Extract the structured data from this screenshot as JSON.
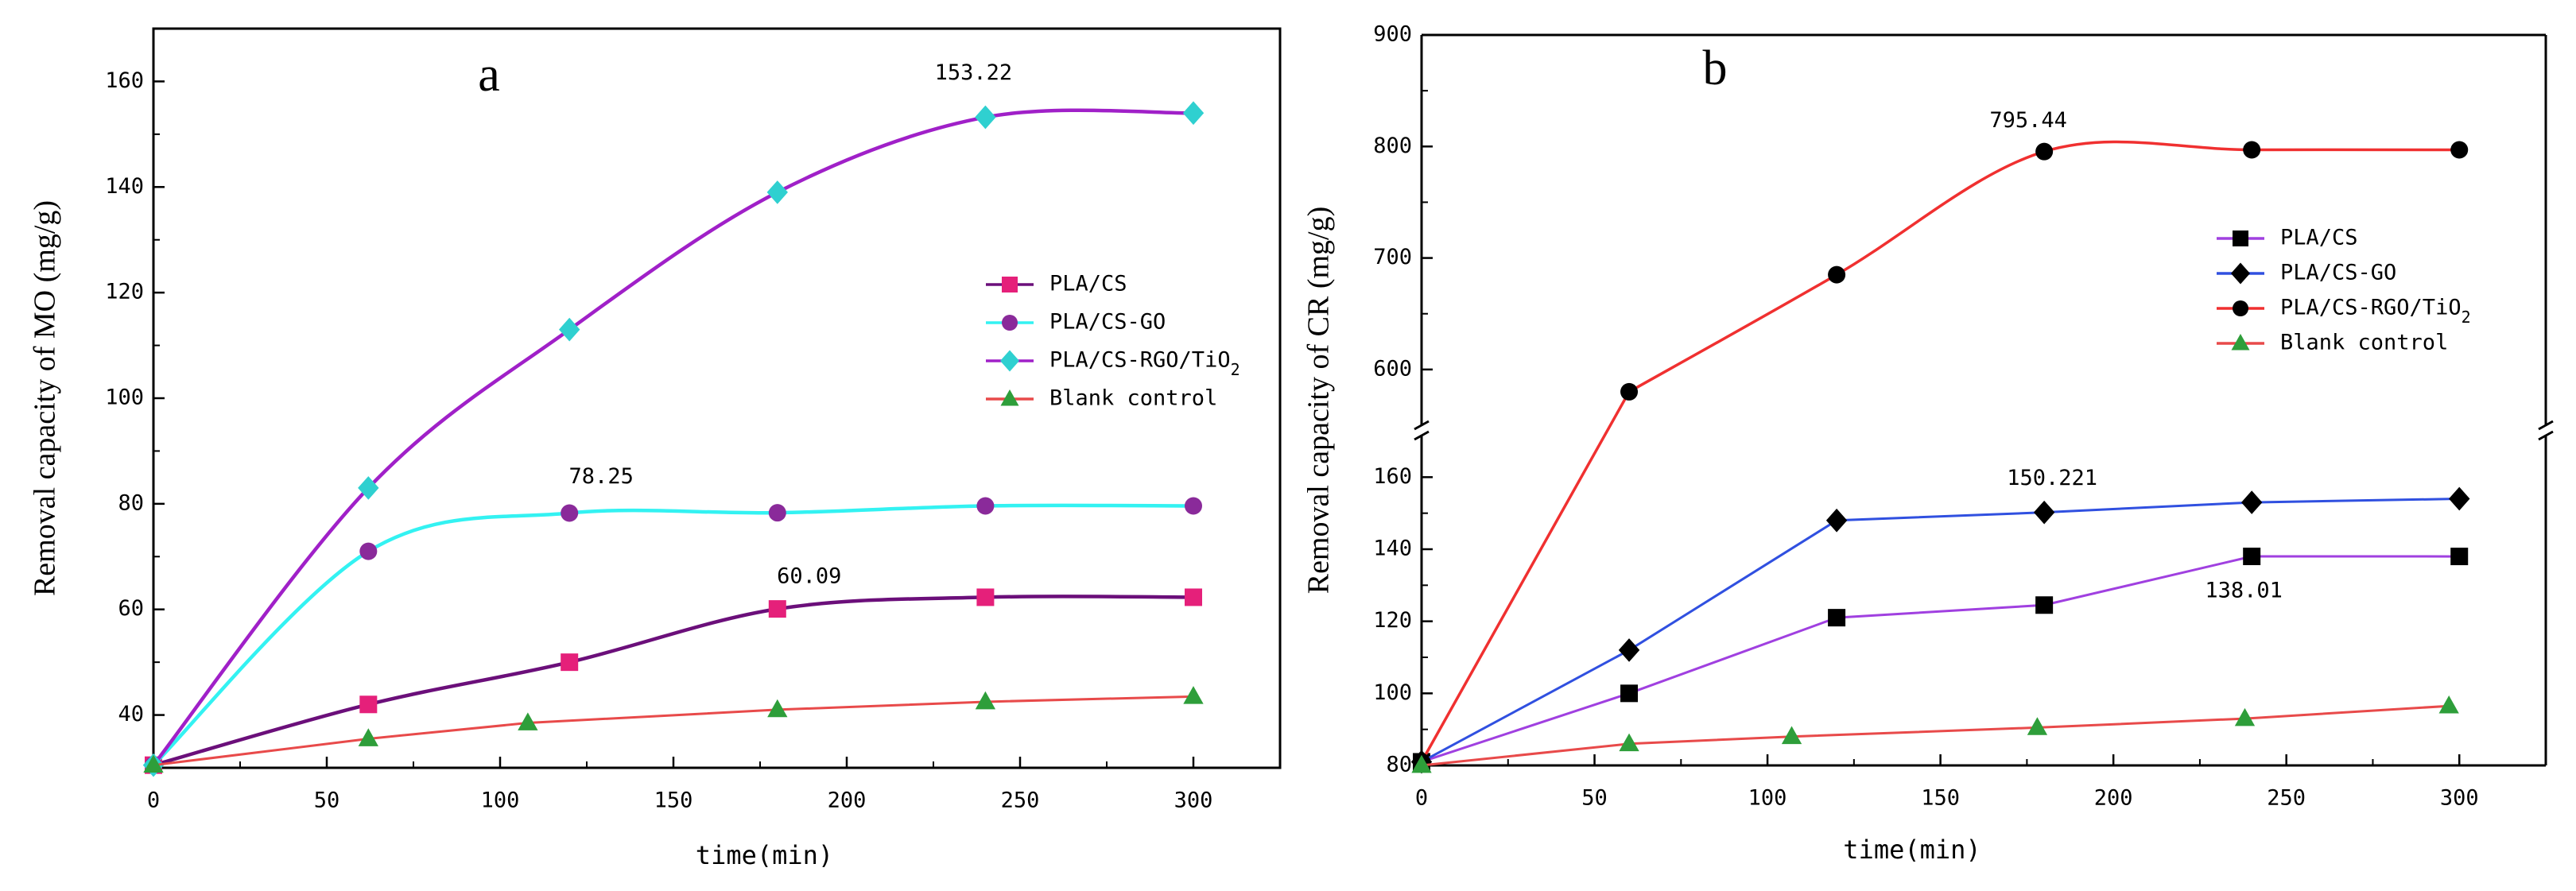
{
  "chart_data": [
    {
      "panel": "a",
      "type": "line",
      "ylabel": "Removal capacity of MO (mg/g)",
      "xlabel": "time(min)",
      "xlim": [
        0,
        325
      ],
      "ylim": [
        30,
        170
      ],
      "xticks": [
        0,
        50,
        100,
        150,
        200,
        250,
        300
      ],
      "xtick_labels": [
        "0",
        "50",
        "100",
        "150",
        "200",
        "250",
        "300"
      ],
      "yticks": [
        40,
        60,
        80,
        100,
        120,
        140,
        160
      ],
      "ytick_labels": [
        "40",
        "60",
        "80",
        "100",
        "120",
        "140",
        "160"
      ],
      "series": [
        {
          "name": "PLA/CS",
          "color": "#6b0f7a",
          "marker": "square",
          "marker_color": "#e5207a",
          "x": [
            0,
            62,
            120,
            180,
            240,
            300
          ],
          "y": [
            30.5,
            42,
            50,
            60.09,
            62.3,
            62.3
          ]
        },
        {
          "name": "PLA/CS-GO",
          "color": "#33f2f2",
          "marker": "circle",
          "marker_color": "#8a2a9a",
          "x": [
            0,
            62,
            120,
            180,
            240,
            300
          ],
          "y": [
            30.5,
            71,
            78.25,
            78.3,
            79.6,
            79.6
          ]
        },
        {
          "name": "PLA/CS-RGO/TiO",
          "name_subscript": "2",
          "color": "#a020c8",
          "marker": "diamond",
          "marker_color": "#2fd0d0",
          "x": [
            0,
            62,
            120,
            180,
            240,
            300
          ],
          "y": [
            30.5,
            83,
            113,
            139,
            153.22,
            154
          ]
        },
        {
          "name": "Blank control",
          "color": "#e84a4a",
          "marker": "triangle",
          "marker_color": "#2e9e3a",
          "x": [
            0,
            62,
            108,
            180,
            240,
            300
          ],
          "y": [
            30.5,
            35.5,
            38.5,
            41,
            42.5,
            43.5
          ]
        }
      ],
      "annotations": [
        "153.22",
        "78.25",
        "60.09"
      ]
    },
    {
      "panel": "b",
      "type": "line",
      "ylabel": "Removal capacity of CR (mg/g)",
      "xlabel": "time(min)",
      "xlim": [
        0,
        325
      ],
      "axis_break": true,
      "ylim_lower": [
        80,
        170
      ],
      "ylim_upper": [
        555,
        900
      ],
      "xticks": [
        0,
        50,
        100,
        150,
        200,
        250,
        300
      ],
      "xtick_labels": [
        "0",
        "50",
        "100",
        "150",
        "200",
        "250",
        "300"
      ],
      "yticks_lower": [
        80,
        100,
        120,
        140,
        160
      ],
      "ytick_labels_lower": [
        "80",
        "100",
        "120",
        "140",
        "160"
      ],
      "yticks_upper": [
        600,
        700,
        800,
        900
      ],
      "ytick_labels_upper": [
        "600",
        "700",
        "800",
        "900"
      ],
      "series": [
        {
          "name": "PLA/CS",
          "color": "#a040e0",
          "marker": "square",
          "marker_color": "#000000",
          "x": [
            0,
            60,
            120,
            180,
            240,
            300
          ],
          "y": [
            81,
            100,
            121,
            124.5,
            138.01,
            138
          ]
        },
        {
          "name": "PLA/CS-GO",
          "color": "#3050e0",
          "marker": "diamond",
          "marker_color": "#000000",
          "x": [
            0,
            60,
            120,
            180,
            240,
            300
          ],
          "y": [
            81,
            112,
            148,
            150.221,
            153,
            154
          ]
        },
        {
          "name": "PLA/CS-RGO/TiO",
          "name_subscript": "2",
          "color": "#f03030",
          "marker": "circle",
          "marker_color": "#000000",
          "x": [
            0,
            60,
            120,
            180,
            240,
            300
          ],
          "y": [
            81,
            580,
            685,
            795.44,
            797,
            797
          ]
        },
        {
          "name": "Blank control",
          "color": "#e84a4a",
          "marker": "triangle",
          "marker_color": "#2e9e3a",
          "x": [
            0,
            60,
            107,
            178,
            238,
            297
          ],
          "y": [
            80,
            86,
            88,
            90.5,
            93,
            96.5
          ]
        }
      ],
      "annotations": [
        "795.44",
        "150.221",
        "138.01"
      ]
    }
  ],
  "panel_labels": {
    "a": "a",
    "b": "b"
  }
}
